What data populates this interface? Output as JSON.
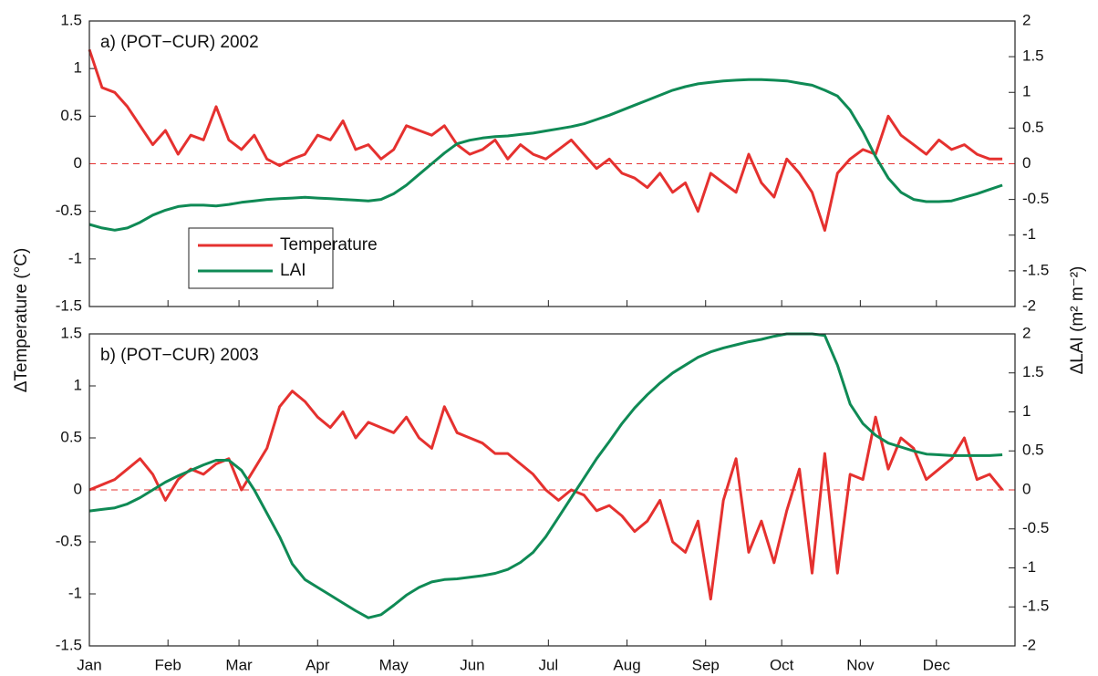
{
  "chart_data": [
    {
      "type": "line",
      "title": "a) (POT−CUR) 2002",
      "y_label": "ΔTemperature (°C)",
      "y2_label": "ΔLAI (m² m⁻²)",
      "x": [
        1,
        6,
        11,
        16,
        21,
        26,
        31,
        36,
        41,
        46,
        51,
        56,
        61,
        66,
        71,
        76,
        81,
        86,
        91,
        96,
        101,
        106,
        111,
        116,
        121,
        126,
        131,
        136,
        141,
        146,
        151,
        156,
        161,
        166,
        171,
        176,
        181,
        186,
        191,
        196,
        201,
        206,
        211,
        216,
        221,
        226,
        231,
        236,
        241,
        246,
        251,
        256,
        261,
        266,
        271,
        276,
        281,
        286,
        291,
        296,
        301,
        306,
        311,
        316,
        321,
        326,
        331,
        336,
        341,
        346,
        351,
        356,
        361
      ],
      "xlim": [
        1,
        366
      ],
      "xticks": [
        1,
        32,
        60,
        91,
        121,
        152,
        182,
        213,
        244,
        274,
        305,
        335
      ],
      "ylim": [
        -1.5,
        1.5
      ],
      "yticks": [
        -1.5,
        -1,
        -0.5,
        0,
        0.5,
        1,
        1.5
      ],
      "y2lim": [
        -2,
        2
      ],
      "y2ticks": [
        -2,
        -1.5,
        -1,
        -0.5,
        0,
        0.5,
        1,
        1.5,
        2
      ],
      "zero_line": true,
      "legend": "lower left",
      "series": [
        {
          "name": "Temperature",
          "color": "#e5312f",
          "values": [
            1.2,
            0.8,
            0.75,
            0.6,
            0.4,
            0.2,
            0.35,
            0.1,
            0.3,
            0.25,
            0.6,
            0.25,
            0.15,
            0.3,
            0.05,
            -0.02,
            0.05,
            0.1,
            0.3,
            0.25,
            0.45,
            0.15,
            0.2,
            0.05,
            0.15,
            0.4,
            0.35,
            0.3,
            0.4,
            0.2,
            0.1,
            0.15,
            0.25,
            0.05,
            0.2,
            0.1,
            0.05,
            0.15,
            0.25,
            0.1,
            -0.05,
            0.05,
            -0.1,
            -0.15,
            -0.25,
            -0.1,
            -0.3,
            -0.2,
            -0.5,
            -0.1,
            -0.2,
            -0.3,
            0.1,
            -0.2,
            -0.35,
            0.05,
            -0.1,
            -0.3,
            -0.7,
            -0.1,
            0.05,
            0.15,
            0.1,
            0.5,
            0.3,
            0.2,
            0.1,
            0.25,
            0.15,
            0.2,
            0.1,
            0.05,
            0.05
          ]
        },
        {
          "name": "LAI",
          "color": "#0f8a55",
          "axis": "y2",
          "values": [
            -0.85,
            -0.9,
            -0.93,
            -0.9,
            -0.82,
            -0.72,
            -0.65,
            -0.6,
            -0.58,
            -0.58,
            -0.59,
            -0.57,
            -0.54,
            -0.52,
            -0.5,
            -0.49,
            -0.48,
            -0.47,
            -0.48,
            -0.49,
            -0.5,
            -0.51,
            -0.52,
            -0.5,
            -0.42,
            -0.3,
            -0.15,
            0.0,
            0.15,
            0.28,
            0.33,
            0.36,
            0.38,
            0.39,
            0.41,
            0.43,
            0.46,
            0.49,
            0.52,
            0.56,
            0.62,
            0.68,
            0.75,
            0.82,
            0.89,
            0.96,
            1.03,
            1.08,
            1.12,
            1.14,
            1.16,
            1.17,
            1.18,
            1.18,
            1.17,
            1.16,
            1.13,
            1.1,
            1.03,
            0.95,
            0.75,
            0.45,
            0.1,
            -0.2,
            -0.4,
            -0.5,
            -0.53,
            -0.53,
            -0.52,
            -0.47,
            -0.42,
            -0.36,
            -0.3
          ]
        }
      ]
    },
    {
      "type": "line",
      "title": "b) (POT−CUR) 2003",
      "x": [
        1,
        6,
        11,
        16,
        21,
        26,
        31,
        36,
        41,
        46,
        51,
        56,
        61,
        66,
        71,
        76,
        81,
        86,
        91,
        96,
        101,
        106,
        111,
        116,
        121,
        126,
        131,
        136,
        141,
        146,
        151,
        156,
        161,
        166,
        171,
        176,
        181,
        186,
        191,
        196,
        201,
        206,
        211,
        216,
        221,
        226,
        231,
        236,
        241,
        246,
        251,
        256,
        261,
        266,
        271,
        276,
        281,
        286,
        291,
        296,
        301,
        306,
        311,
        316,
        321,
        326,
        331,
        336,
        341,
        346,
        351,
        356,
        361
      ],
      "xlim": [
        1,
        366
      ],
      "xticks": [
        {
          "value": 1,
          "label": "Jan"
        },
        {
          "value": 32,
          "label": "Feb"
        },
        {
          "value": 60,
          "label": "Mar"
        },
        {
          "value": 91,
          "label": "Apr"
        },
        {
          "value": 121,
          "label": "May"
        },
        {
          "value": 152,
          "label": "Jun"
        },
        {
          "value": 182,
          "label": "Jul"
        },
        {
          "value": 213,
          "label": "Aug"
        },
        {
          "value": 244,
          "label": "Sep"
        },
        {
          "value": 274,
          "label": "Oct"
        },
        {
          "value": 305,
          "label": "Nov"
        },
        {
          "value": 335,
          "label": "Dec"
        }
      ],
      "ylim": [
        -1.5,
        1.5
      ],
      "yticks": [
        -1.5,
        -1,
        -0.5,
        0,
        0.5,
        1,
        1.5
      ],
      "y2lim": [
        -2,
        2
      ],
      "y2ticks": [
        -2,
        -1.5,
        -1,
        -0.5,
        0,
        0.5,
        1,
        1.5,
        2
      ],
      "zero_line": true,
      "series": [
        {
          "name": "Temperature",
          "color": "#e5312f",
          "values": [
            0.0,
            0.05,
            0.1,
            0.2,
            0.3,
            0.15,
            -0.1,
            0.1,
            0.2,
            0.15,
            0.25,
            0.3,
            0.0,
            0.2,
            0.4,
            0.8,
            0.95,
            0.85,
            0.7,
            0.6,
            0.75,
            0.5,
            0.65,
            0.6,
            0.55,
            0.7,
            0.5,
            0.4,
            0.8,
            0.55,
            0.5,
            0.45,
            0.35,
            0.35,
            0.25,
            0.15,
            0.0,
            -0.1,
            0.0,
            -0.05,
            -0.2,
            -0.15,
            -0.25,
            -0.4,
            -0.3,
            -0.1,
            -0.5,
            -0.6,
            -0.3,
            -1.05,
            -0.1,
            0.3,
            -0.6,
            -0.3,
            -0.7,
            -0.2,
            0.2,
            -0.8,
            0.35,
            -0.8,
            0.15,
            0.1,
            0.7,
            0.2,
            0.5,
            0.4,
            0.1,
            0.2,
            0.3,
            0.5,
            0.1,
            0.15,
            0.0
          ]
        },
        {
          "name": "LAI",
          "color": "#0f8a55",
          "axis": "y2",
          "values": [
            -0.27,
            -0.25,
            -0.23,
            -0.18,
            -0.1,
            0.0,
            0.1,
            0.18,
            0.25,
            0.32,
            0.38,
            0.38,
            0.25,
            0.0,
            -0.3,
            -0.6,
            -0.95,
            -1.15,
            -1.25,
            -1.35,
            -1.45,
            -1.55,
            -1.64,
            -1.6,
            -1.48,
            -1.35,
            -1.25,
            -1.18,
            -1.15,
            -1.14,
            -1.12,
            -1.1,
            -1.07,
            -1.02,
            -0.93,
            -0.8,
            -0.6,
            -0.35,
            -0.1,
            0.15,
            0.4,
            0.62,
            0.85,
            1.05,
            1.22,
            1.37,
            1.5,
            1.6,
            1.7,
            1.77,
            1.82,
            1.86,
            1.9,
            1.93,
            1.97,
            2.0,
            2.0,
            2.0,
            1.98,
            1.6,
            1.1,
            0.85,
            0.7,
            0.6,
            0.55,
            0.5,
            0.46,
            0.45,
            0.44,
            0.44,
            0.44,
            0.44,
            0.45
          ]
        }
      ]
    }
  ]
}
